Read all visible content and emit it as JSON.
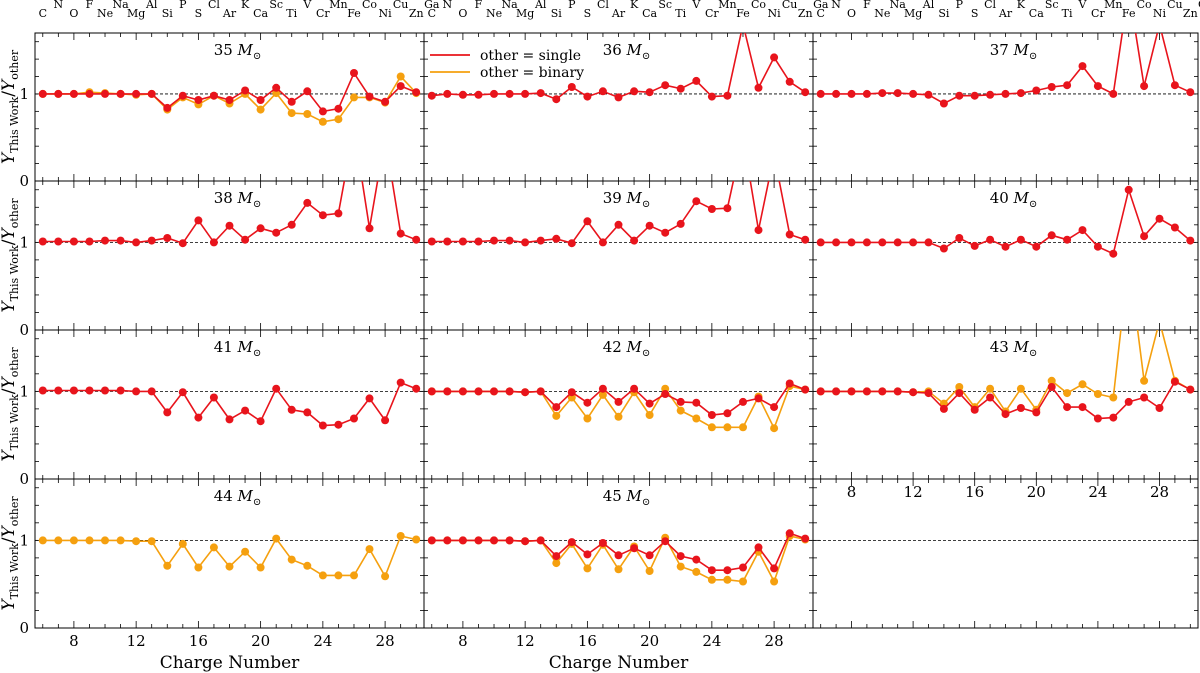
{
  "chart_data": {
    "type": "line",
    "ylabel": "Y_This Work / Y_other",
    "xlabel": "Charge Number",
    "xlim": [
      5.5,
      30.5
    ],
    "ylim": [
      0,
      1.7
    ],
    "x_ticks": [
      8,
      12,
      16,
      20,
      24,
      28
    ],
    "y_ticks": [
      0,
      1
    ],
    "reference_line_y": 1,
    "grid": false,
    "legend": {
      "placement": "top-left of panel 36 M⊙",
      "entries": [
        {
          "name": "other = single",
          "color": "#e8141c"
        },
        {
          "name": "other = binary",
          "color": "#f5a00f"
        }
      ]
    },
    "elements": [
      {
        "z": 6,
        "symbol": "C"
      },
      {
        "z": 7,
        "symbol": "N"
      },
      {
        "z": 8,
        "symbol": "O"
      },
      {
        "z": 9,
        "symbol": "F"
      },
      {
        "z": 10,
        "symbol": "Ne"
      },
      {
        "z": 11,
        "symbol": "Na"
      },
      {
        "z": 12,
        "symbol": "Mg"
      },
      {
        "z": 13,
        "symbol": "Al"
      },
      {
        "z": 14,
        "symbol": "Si"
      },
      {
        "z": 15,
        "symbol": "P"
      },
      {
        "z": 16,
        "symbol": "S"
      },
      {
        "z": 17,
        "symbol": "Cl"
      },
      {
        "z": 18,
        "symbol": "Ar"
      },
      {
        "z": 19,
        "symbol": "K"
      },
      {
        "z": 20,
        "symbol": "Ca"
      },
      {
        "z": 21,
        "symbol": "Sc"
      },
      {
        "z": 22,
        "symbol": "Ti"
      },
      {
        "z": 23,
        "symbol": "V"
      },
      {
        "z": 24,
        "symbol": "Cr"
      },
      {
        "z": 25,
        "symbol": "Mn"
      },
      {
        "z": 26,
        "symbol": "Fe"
      },
      {
        "z": 27,
        "symbol": "Co"
      },
      {
        "z": 28,
        "symbol": "Ni"
      },
      {
        "z": 29,
        "symbol": "Cu"
      },
      {
        "z": 30,
        "symbol": "Zn"
      },
      {
        "z": 31,
        "symbol": "Ga"
      }
    ],
    "x": [
      6,
      7,
      8,
      9,
      10,
      11,
      12,
      13,
      14,
      15,
      16,
      17,
      18,
      19,
      20,
      21,
      22,
      23,
      24,
      25,
      26,
      27,
      28,
      29,
      30
    ],
    "panels": [
      {
        "mass": "35",
        "series": [
          {
            "name": "other = binary",
            "color": "#f5a00f",
            "values": [
              1.0,
              1.0,
              1.0,
              1.02,
              1.01,
              1.0,
              0.99,
              1.0,
              0.82,
              0.96,
              0.88,
              0.98,
              0.89,
              1.0,
              0.82,
              1.01,
              0.78,
              0.77,
              0.68,
              0.71,
              0.96,
              0.96,
              0.9,
              1.2,
              1.01
            ]
          },
          {
            "name": "other = single",
            "color": "#e8141c",
            "values": [
              1.0,
              1.0,
              1.0,
              1.0,
              1.0,
              1.0,
              1.0,
              1.0,
              0.84,
              0.98,
              0.93,
              0.98,
              0.93,
              1.04,
              0.93,
              1.07,
              0.91,
              1.03,
              0.8,
              0.83,
              1.24,
              0.97,
              0.91,
              1.09,
              1.02
            ]
          }
        ]
      },
      {
        "mass": "36",
        "series": [
          {
            "name": "other = single",
            "color": "#e8141c",
            "values": [
              0.98,
              1.0,
              0.99,
              0.99,
              1.0,
              1.0,
              1.0,
              1.01,
              0.94,
              1.08,
              0.97,
              1.03,
              0.96,
              1.03,
              1.02,
              1.1,
              1.06,
              1.15,
              0.97,
              0.98,
              1.8,
              1.07,
              1.42,
              1.14,
              1.02
            ]
          }
        ]
      },
      {
        "mass": "37",
        "series": [
          {
            "name": "other = single",
            "color": "#e8141c",
            "values": [
              1.0,
              1.0,
              1.0,
              1.0,
              1.01,
              1.01,
              1.0,
              0.99,
              0.89,
              0.98,
              0.98,
              0.99,
              1.0,
              1.01,
              1.04,
              1.08,
              1.1,
              1.32,
              1.09,
              1.0,
              2.2,
              1.09,
              1.8,
              1.1,
              1.02
            ]
          }
        ]
      },
      {
        "mass": "38",
        "series": [
          {
            "name": "other = single",
            "color": "#e8141c",
            "values": [
              1.01,
              1.01,
              1.01,
              1.01,
              1.02,
              1.02,
              1.0,
              1.02,
              1.05,
              0.99,
              1.25,
              1.0,
              1.19,
              1.03,
              1.16,
              1.11,
              1.2,
              1.45,
              1.31,
              1.33,
              2.3,
              1.16,
              2.2,
              1.1,
              1.03
            ]
          }
        ]
      },
      {
        "mass": "39",
        "series": [
          {
            "name": "other = single",
            "color": "#e8141c",
            "values": [
              1.01,
              1.01,
              1.01,
              1.01,
              1.02,
              1.02,
              1.0,
              1.02,
              1.04,
              0.99,
              1.24,
              1.0,
              1.2,
              1.02,
              1.19,
              1.11,
              1.21,
              1.47,
              1.38,
              1.39,
              2.2,
              1.14,
              2.0,
              1.09,
              1.03
            ]
          }
        ]
      },
      {
        "mass": "40",
        "series": [
          {
            "name": "other = single",
            "color": "#e8141c",
            "values": [
              1.0,
              1.0,
              1.0,
              1.0,
              1.0,
              1.0,
              1.0,
              1.0,
              0.93,
              1.05,
              0.96,
              1.03,
              0.95,
              1.03,
              0.95,
              1.08,
              1.03,
              1.14,
              0.95,
              0.87,
              1.6,
              1.07,
              1.27,
              1.17,
              1.02
            ]
          }
        ]
      },
      {
        "mass": "41",
        "series": [
          {
            "name": "other = single",
            "color": "#e8141c",
            "values": [
              1.01,
              1.01,
              1.01,
              1.01,
              1.01,
              1.01,
              1.0,
              1.0,
              0.76,
              0.99,
              0.7,
              0.93,
              0.68,
              0.78,
              0.66,
              1.03,
              0.79,
              0.76,
              0.61,
              0.62,
              0.69,
              0.92,
              0.67,
              1.1,
              1.03
            ]
          }
        ]
      },
      {
        "mass": "42",
        "series": [
          {
            "name": "other = binary",
            "color": "#f5a00f",
            "values": [
              1.0,
              1.0,
              1.0,
              1.0,
              1.0,
              1.0,
              0.99,
              1.0,
              0.72,
              0.93,
              0.69,
              0.96,
              0.71,
              0.99,
              0.73,
              1.03,
              0.78,
              0.69,
              0.59,
              0.59,
              0.59,
              0.94,
              0.58,
              1.06,
              1.02
            ]
          },
          {
            "name": "other = single",
            "color": "#e8141c",
            "values": [
              1.0,
              1.0,
              1.0,
              1.0,
              1.0,
              1.0,
              0.99,
              1.0,
              0.82,
              0.99,
              0.87,
              1.03,
              0.88,
              1.03,
              0.86,
              0.97,
              0.88,
              0.87,
              0.73,
              0.75,
              0.88,
              0.92,
              0.82,
              1.09,
              1.02
            ]
          }
        ]
      },
      {
        "mass": "43",
        "series": [
          {
            "name": "other = binary",
            "color": "#f5a00f",
            "values": [
              1.0,
              1.0,
              1.0,
              1.0,
              1.0,
              1.0,
              0.99,
              1.0,
              0.86,
              1.05,
              0.82,
              1.03,
              0.77,
              1.03,
              0.79,
              1.12,
              0.98,
              1.08,
              0.97,
              0.93,
              2.5,
              1.12,
              1.8,
              1.12,
              1.02
            ]
          },
          {
            "name": "other = single",
            "color": "#e8141c",
            "values": [
              1.0,
              1.0,
              1.0,
              1.0,
              1.0,
              1.0,
              0.99,
              0.98,
              0.8,
              0.98,
              0.79,
              0.93,
              0.74,
              0.81,
              0.76,
              1.05,
              0.82,
              0.82,
              0.69,
              0.7,
              0.88,
              0.93,
              0.81,
              1.11,
              1.02
            ]
          }
        ]
      },
      {
        "mass": "44",
        "series": [
          {
            "name": "other = binary",
            "color": "#f5a00f",
            "values": [
              1.0,
              1.0,
              1.0,
              1.0,
              1.0,
              1.0,
              0.99,
              0.99,
              0.71,
              0.96,
              0.69,
              0.92,
              0.7,
              0.87,
              0.69,
              1.02,
              0.78,
              0.71,
              0.6,
              0.6,
              0.6,
              0.9,
              0.59,
              1.05,
              1.01
            ]
          }
        ]
      },
      {
        "mass": "45",
        "series": [
          {
            "name": "other = binary",
            "color": "#f5a00f",
            "values": [
              1.0,
              1.0,
              1.0,
              1.0,
              1.0,
              1.0,
              0.99,
              1.0,
              0.74,
              0.96,
              0.68,
              0.95,
              0.67,
              0.93,
              0.65,
              1.03,
              0.7,
              0.64,
              0.55,
              0.55,
              0.53,
              0.87,
              0.53,
              1.05,
              1.01
            ]
          },
          {
            "name": "other = single",
            "color": "#e8141c",
            "values": [
              1.0,
              1.0,
              1.0,
              1.0,
              1.0,
              1.0,
              0.99,
              1.0,
              0.82,
              0.98,
              0.84,
              0.97,
              0.83,
              0.91,
              0.83,
              0.99,
              0.82,
              0.78,
              0.66,
              0.66,
              0.69,
              0.92,
              0.68,
              1.08,
              1.02
            ]
          }
        ]
      }
    ],
    "mass_unit": "M⊙"
  }
}
